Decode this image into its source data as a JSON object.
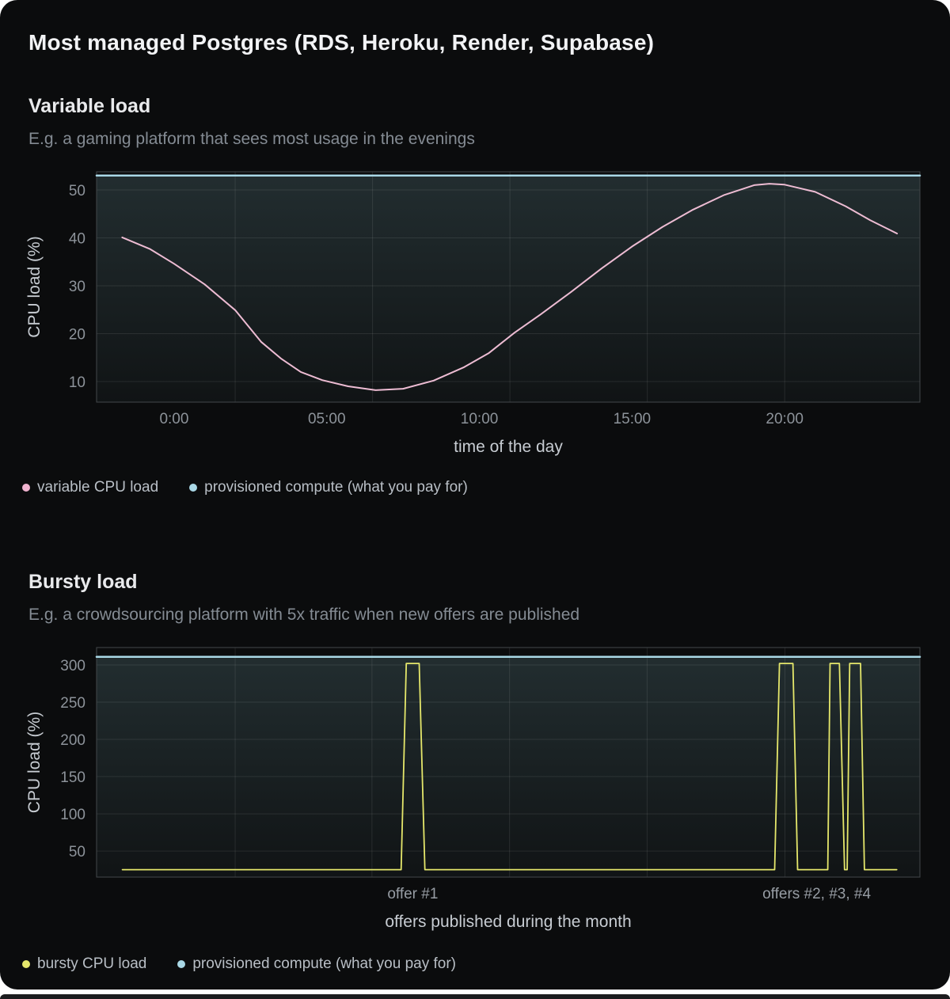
{
  "page": {
    "title": "Most managed Postgres (RDS, Heroku, Render, Supabase)",
    "card_background": "#0b0c0d"
  },
  "sections": [
    {
      "heading": "Variable load",
      "subtitle": "E.g. a gaming platform that sees most usage in the evenings",
      "legend": [
        {
          "label": "variable CPU load",
          "color": "#f0b3cf"
        },
        {
          "label": "provisioned compute (what you pay for)",
          "color": "#a9d8e6"
        }
      ]
    },
    {
      "heading": "Bursty load",
      "subtitle": "E.g. a crowdsourcing platform with 5x traffic when new offers are published",
      "legend": [
        {
          "label": "bursty CPU load",
          "color": "#e5e76b"
        },
        {
          "label": "provisioned compute (what you pay for)",
          "color": "#a9d8e6"
        }
      ]
    }
  ],
  "chart_data": [
    {
      "type": "line",
      "title": "Variable load",
      "xlabel": "time of the day",
      "ylabel": "CPU load (%)",
      "x_domain": [
        -2.54,
        24.43
      ],
      "y_domain": [
        5.7,
        53.8
      ],
      "grid": true,
      "legend_position": "bottom-left",
      "x_ticks": [
        {
          "value": 0,
          "label": "0:00"
        },
        {
          "value": 5,
          "label": "05:00"
        },
        {
          "value": 10,
          "label": "10:00"
        },
        {
          "value": 15,
          "label": "15:00"
        },
        {
          "value": 20,
          "label": "20:00"
        }
      ],
      "x_gridlines": [
        2,
        6.5,
        11,
        15.5,
        20
      ],
      "y_ticks": [
        {
          "value": 10,
          "label": "10"
        },
        {
          "value": 20,
          "label": "20"
        },
        {
          "value": 30,
          "label": "30"
        },
        {
          "value": 40,
          "label": "40"
        },
        {
          "value": 50,
          "label": "50"
        }
      ],
      "series": [
        {
          "name": "provisioned compute (what you pay for)",
          "color": "#a9d8e6",
          "width": 2.5,
          "fill_below": true,
          "points": [
            [
              -2.54,
              53
            ],
            [
              24.43,
              53
            ]
          ]
        },
        {
          "name": "variable CPU load",
          "color": "#edbcd3",
          "width": 2,
          "fill_below": false,
          "points": [
            [
              -1.7,
              40.1
            ],
            [
              -0.8,
              37.7
            ],
            [
              0,
              34.6
            ],
            [
              1,
              30.3
            ],
            [
              2,
              24.9
            ],
            [
              2.85,
              18.3
            ],
            [
              3.5,
              14.8
            ],
            [
              4.15,
              12.0
            ],
            [
              4.85,
              10.3
            ],
            [
              5.7,
              9.0
            ],
            [
              6.6,
              8.2
            ],
            [
              7.5,
              8.5
            ],
            [
              8.5,
              10.2
            ],
            [
              9.5,
              13.0
            ],
            [
              10.3,
              15.9
            ],
            [
              11.15,
              20.2
            ],
            [
              12,
              24.0
            ],
            [
              13,
              28.7
            ],
            [
              14,
              33.6
            ],
            [
              15,
              38.2
            ],
            [
              16,
              42.3
            ],
            [
              17,
              45.9
            ],
            [
              18,
              48.9
            ],
            [
              19,
              51.0
            ],
            [
              19.5,
              51.3
            ],
            [
              20,
              51.1
            ],
            [
              21,
              49.6
            ],
            [
              22,
              46.6
            ],
            [
              22.8,
              43.7
            ],
            [
              23.68,
              40.9
            ]
          ]
        }
      ]
    },
    {
      "type": "line",
      "title": "Bursty load",
      "xlabel": "offers published during the month",
      "ylabel": "CPU load (%)",
      "x_domain": [
        0,
        31.9
      ],
      "y_domain": [
        15,
        323.4
      ],
      "grid": true,
      "legend_position": "bottom-left",
      "x_ticks": [
        {
          "value": 12.25,
          "label": "offer #1"
        },
        {
          "value": 27.9,
          "label": "offers #2, #3, #4"
        }
      ],
      "x_gridlines": [
        5.37,
        10.67,
        16,
        21.33,
        26.67
      ],
      "y_ticks": [
        {
          "value": 50,
          "label": "50"
        },
        {
          "value": 100,
          "label": "100"
        },
        {
          "value": 150,
          "label": "150"
        },
        {
          "value": 200,
          "label": "200"
        },
        {
          "value": 250,
          "label": "250"
        },
        {
          "value": 300,
          "label": "300"
        }
      ],
      "series": [
        {
          "name": "provisioned compute (what you pay for)",
          "color": "#a9d8e6",
          "width": 2.5,
          "fill_below": true,
          "points": [
            [
              0,
              311
            ],
            [
              31.9,
              311
            ]
          ]
        },
        {
          "name": "bursty CPU load",
          "color": "#e5e76b",
          "width": 1.8,
          "fill_below": false,
          "points": [
            [
              1,
              25
            ],
            [
              11.8,
              25
            ],
            [
              12.0,
              302
            ],
            [
              12.5,
              302
            ],
            [
              12.72,
              25
            ],
            [
              26.27,
              25
            ],
            [
              26.46,
              302
            ],
            [
              26.98,
              302
            ],
            [
              27.16,
              25
            ],
            [
              28.33,
              25
            ],
            [
              28.42,
              302
            ],
            [
              28.78,
              302
            ],
            [
              28.98,
              25
            ],
            [
              29.08,
              25
            ],
            [
              29.18,
              302
            ],
            [
              29.6,
              302
            ],
            [
              29.75,
              25
            ],
            [
              31,
              25
            ]
          ]
        }
      ]
    }
  ]
}
